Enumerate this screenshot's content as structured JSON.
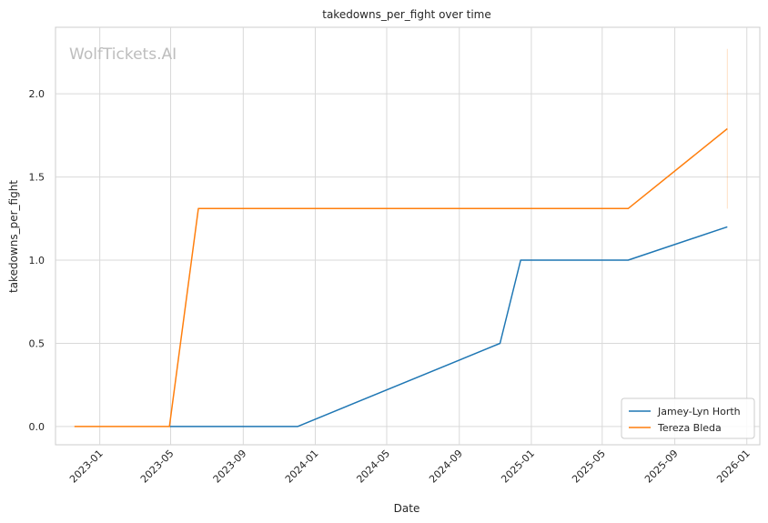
{
  "chart_data": {
    "type": "line",
    "title": "takedowns_per_fight over time",
    "xlabel": "Date",
    "ylabel": "takedowns_per_fight",
    "watermark": "WolfTickets.AI",
    "x_tick_labels": [
      "2023-01",
      "2023-05",
      "2023-09",
      "2024-01",
      "2024-05",
      "2024-09",
      "2025-01",
      "2025-05",
      "2025-09",
      "2026-01"
    ],
    "y_tick_labels": [
      "0.0",
      "0.5",
      "1.0",
      "1.5",
      "2.0"
    ],
    "ylim": [
      -0.11,
      2.4
    ],
    "xlim": [
      "2022-10-18",
      "2026-01-23"
    ],
    "grid": true,
    "legend_position": "bottom-right",
    "series": [
      {
        "name": "Jamey-Lyn Horth",
        "color": "#1f77b4",
        "points": [
          {
            "x": "2023-04-29",
            "y": 0.0
          },
          {
            "x": "2023-12-02",
            "y": 0.0
          },
          {
            "x": "2024-11-09",
            "y": 0.5
          },
          {
            "x": "2024-12-14",
            "y": 1.0
          },
          {
            "x": "2025-06-14",
            "y": 1.0
          },
          {
            "x": "2025-11-29",
            "y": 1.2
          }
        ]
      },
      {
        "name": "Tereza Bleda",
        "color": "#ff7f0e",
        "points": [
          {
            "x": "2022-11-19",
            "y": 0.0
          },
          {
            "x": "2023-04-29",
            "y": 0.0
          },
          {
            "x": "2023-06-17",
            "y": 1.31
          },
          {
            "x": "2025-06-14",
            "y": 1.31
          },
          {
            "x": "2025-11-29",
            "y": 1.79
          }
        ],
        "error_band": {
          "x": "2025-11-29",
          "low": 1.31,
          "high": 2.27
        }
      }
    ]
  }
}
